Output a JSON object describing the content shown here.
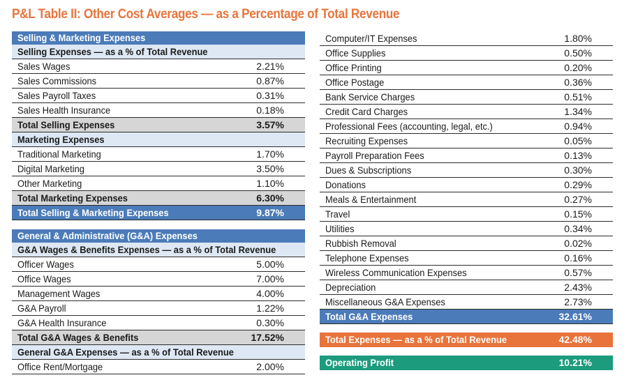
{
  "title": "P&L Table II: Other Cost Averages — as a Percentage of Total Revenue",
  "left": {
    "selling_marketing_header": "Selling & Marketing Expenses",
    "selling_sub": "Selling Expenses — as a % of Total Revenue",
    "selling_rows": [
      {
        "label": "Sales Wages",
        "value": "2.21%"
      },
      {
        "label": "Sales Commissions",
        "value": "0.87%"
      },
      {
        "label": "Sales Payroll Taxes",
        "value": "0.31%"
      },
      {
        "label": "Sales Health Insurance",
        "value": "0.18%"
      }
    ],
    "total_selling": {
      "label": "Total Selling Expenses",
      "value": "3.57%"
    },
    "marketing_sub": "Marketing Expenses",
    "marketing_rows": [
      {
        "label": "Traditional Marketing",
        "value": "1.70%"
      },
      {
        "label": "Digital Marketing",
        "value": "3.50%"
      },
      {
        "label": "Other Marketing",
        "value": "1.10%"
      }
    ],
    "total_marketing": {
      "label": "Total Marketing Expenses",
      "value": "6.30%"
    },
    "total_selling_marketing": {
      "label": "Total Selling & Marketing Expenses",
      "value": "9.87%"
    },
    "ga_header": "General & Administrative (G&A) Expenses",
    "ga_wages_sub": "G&A Wages & Benefits Expenses — as a % of Total Revenue",
    "ga_wages_rows": [
      {
        "label": "Officer Wages",
        "value": "5.00%"
      },
      {
        "label": "Office Wages",
        "value": "7.00%"
      },
      {
        "label": "Management Wages",
        "value": "4.00%"
      },
      {
        "label": "G&A Payroll",
        "value": "1.22%"
      },
      {
        "label": "G&A Health Insurance",
        "value": "0.30%"
      }
    ],
    "total_ga_wages": {
      "label": "Total G&A Wages & Benefits",
      "value": "17.52%"
    },
    "general_ga_sub": "General G&A Expenses — as a % of Total Revenue",
    "general_ga_rows": [
      {
        "label": "Office Rent/Mortgage",
        "value": "2.00%"
      }
    ]
  },
  "right": {
    "rows": [
      {
        "label": "Computer/IT Expenses",
        "value": "1.80%"
      },
      {
        "label": "Office Supplies",
        "value": "0.50%"
      },
      {
        "label": "Office Printing",
        "value": "0.20%"
      },
      {
        "label": "Office Postage",
        "value": "0.36%"
      },
      {
        "label": "Bank Service Charges",
        "value": "0.51%"
      },
      {
        "label": "Credit Card Charges",
        "value": "1.34%"
      },
      {
        "label": "Professional Fees (accounting, legal, etc.)",
        "value": "0.94%"
      },
      {
        "label": "Recruiting Expenses",
        "value": "0.05%"
      },
      {
        "label": "Payroll Preparation Fees",
        "value": "0.13%"
      },
      {
        "label": "Dues & Subscriptions",
        "value": "0.30%"
      },
      {
        "label": "Donations",
        "value": "0.29%"
      },
      {
        "label": "Meals & Entertainment",
        "value": "0.27%"
      },
      {
        "label": "Travel",
        "value": "0.15%"
      },
      {
        "label": "Utilities",
        "value": "0.34%"
      },
      {
        "label": "Rubbish Removal",
        "value": "0.02%"
      },
      {
        "label": "Telephone Expenses",
        "value": "0.16%"
      },
      {
        "label": "Wireless Communication Expenses",
        "value": "0.57%"
      },
      {
        "label": "Depreciation",
        "value": "2.43%"
      },
      {
        "label": "Miscellaneous G&A Expenses",
        "value": "2.73%"
      }
    ],
    "total_ga": {
      "label": "Total G&A Expenses",
      "value": "32.61%"
    },
    "total_expenses": {
      "label": "Total Expenses — as a % of Total Revenue",
      "value": "42.48%"
    },
    "operating_profit": {
      "label": "Operating Profit",
      "value": "10.21%"
    }
  },
  "colors": {
    "title_orange": "#e8743b",
    "header_blue": "#4b7bb8",
    "subheader_light_blue": "#dde8f4",
    "total_gray": "#d6d6d6",
    "orange_total": "#e8743b",
    "green_total": "#1c9b7d"
  }
}
